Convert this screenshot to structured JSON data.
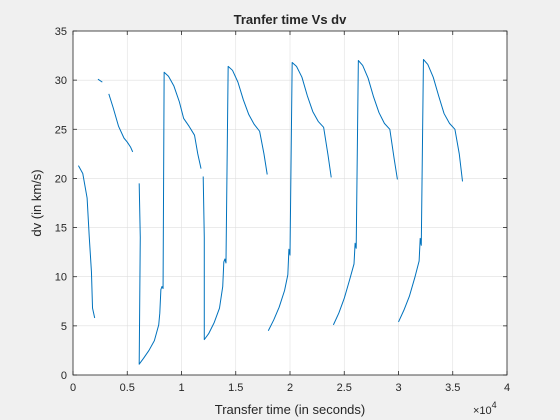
{
  "chart_data": {
    "type": "line",
    "title": "Tranfer time Vs dv",
    "xlabel": "Transfer time (in seconds)",
    "ylabel": "dv (in km/s)",
    "xlim": [
      0,
      40000
    ],
    "ylim": [
      0,
      35
    ],
    "x_ticks": [
      0,
      5000,
      10000,
      15000,
      20000,
      25000,
      30000,
      35000,
      40000
    ],
    "x_tick_labels": [
      "0",
      "0.5",
      "1",
      "1.5",
      "2",
      "2.5",
      "3",
      "3.5",
      "4"
    ],
    "y_ticks": [
      0,
      5,
      10,
      15,
      20,
      25,
      30,
      35
    ],
    "y_tick_labels": [
      "0",
      "5",
      "10",
      "15",
      "20",
      "25",
      "30",
      "35"
    ],
    "x_exponent_base": "×10",
    "x_exponent_power": "4",
    "grid": true,
    "line_color": "#0072bd",
    "segments": [
      [
        [
          500,
          21.3
        ],
        [
          900,
          20.5
        ],
        [
          1300,
          18.0
        ],
        [
          1500,
          14.0
        ],
        [
          1700,
          10.5
        ],
        [
          1800,
          6.8
        ],
        [
          2000,
          5.8
        ]
      ],
      [
        [
          2300,
          30.1
        ],
        [
          2700,
          29.8
        ]
      ],
      [
        [
          3300,
          28.6
        ],
        [
          3700,
          27.2
        ],
        [
          4200,
          25.3
        ],
        [
          4700,
          24.1
        ],
        [
          5000,
          23.7
        ],
        [
          5300,
          23.2
        ],
        [
          5500,
          22.7
        ]
      ],
      [
        [
          6100,
          19.5
        ],
        [
          6200,
          14.0
        ],
        [
          6100,
          1.1
        ],
        [
          6500,
          1.7
        ],
        [
          7000,
          2.5
        ],
        [
          7500,
          3.5
        ],
        [
          7900,
          5.1
        ],
        [
          8000,
          6.3
        ],
        [
          8100,
          8.7
        ],
        [
          8200,
          9.0
        ],
        [
          8300,
          8.8
        ],
        [
          8400,
          30.8
        ],
        [
          8800,
          30.4
        ],
        [
          9300,
          29.4
        ],
        [
          9800,
          27.8
        ],
        [
          10200,
          26.1
        ],
        [
          10700,
          25.3
        ],
        [
          11200,
          24.4
        ],
        [
          11500,
          22.5
        ],
        [
          11800,
          21.0
        ]
      ],
      [
        [
          12000,
          20.2
        ],
        [
          12100,
          14.0
        ],
        [
          12100,
          3.6
        ],
        [
          12500,
          4.2
        ],
        [
          13000,
          5.3
        ],
        [
          13500,
          6.8
        ],
        [
          13800,
          9.0
        ],
        [
          13900,
          11.5
        ],
        [
          14000,
          11.8
        ],
        [
          14100,
          11.4
        ],
        [
          14300,
          31.4
        ],
        [
          14700,
          31.0
        ],
        [
          15200,
          29.8
        ],
        [
          15700,
          28.0
        ],
        [
          16200,
          26.5
        ],
        [
          16700,
          25.5
        ],
        [
          17200,
          24.8
        ],
        [
          17600,
          22.5
        ],
        [
          17900,
          20.4
        ]
      ],
      [
        [
          18000,
          4.5
        ],
        [
          18500,
          5.6
        ],
        [
          19000,
          6.9
        ],
        [
          19500,
          8.6
        ],
        [
          19800,
          10.2
        ],
        [
          19900,
          12.8
        ],
        [
          20000,
          12.2
        ],
        [
          20200,
          31.8
        ],
        [
          20600,
          31.4
        ],
        [
          21100,
          30.3
        ],
        [
          21600,
          28.4
        ],
        [
          22100,
          26.8
        ],
        [
          22600,
          25.8
        ],
        [
          23100,
          25.2
        ],
        [
          23500,
          22.4
        ],
        [
          23800,
          20.1
        ]
      ],
      [
        [
          24000,
          5.1
        ],
        [
          24500,
          6.3
        ],
        [
          25000,
          7.8
        ],
        [
          25500,
          9.7
        ],
        [
          25900,
          11.3
        ],
        [
          26000,
          13.4
        ],
        [
          26100,
          12.9
        ],
        [
          26300,
          32.0
        ],
        [
          26700,
          31.5
        ],
        [
          27200,
          30.2
        ],
        [
          27700,
          28.3
        ],
        [
          28200,
          26.7
        ],
        [
          28700,
          25.6
        ],
        [
          29200,
          25.0
        ],
        [
          29600,
          22.0
        ],
        [
          29900,
          19.9
        ]
      ],
      [
        [
          30000,
          5.4
        ],
        [
          30500,
          6.6
        ],
        [
          31000,
          8.0
        ],
        [
          31500,
          9.9
        ],
        [
          31900,
          11.6
        ],
        [
          32000,
          13.9
        ],
        [
          32100,
          13.2
        ],
        [
          32300,
          32.1
        ],
        [
          32700,
          31.6
        ],
        [
          33200,
          30.3
        ],
        [
          33700,
          28.4
        ],
        [
          34200,
          26.6
        ],
        [
          34700,
          25.6
        ],
        [
          35200,
          25.0
        ],
        [
          35600,
          22.5
        ],
        [
          35900,
          19.7
        ]
      ]
    ]
  }
}
